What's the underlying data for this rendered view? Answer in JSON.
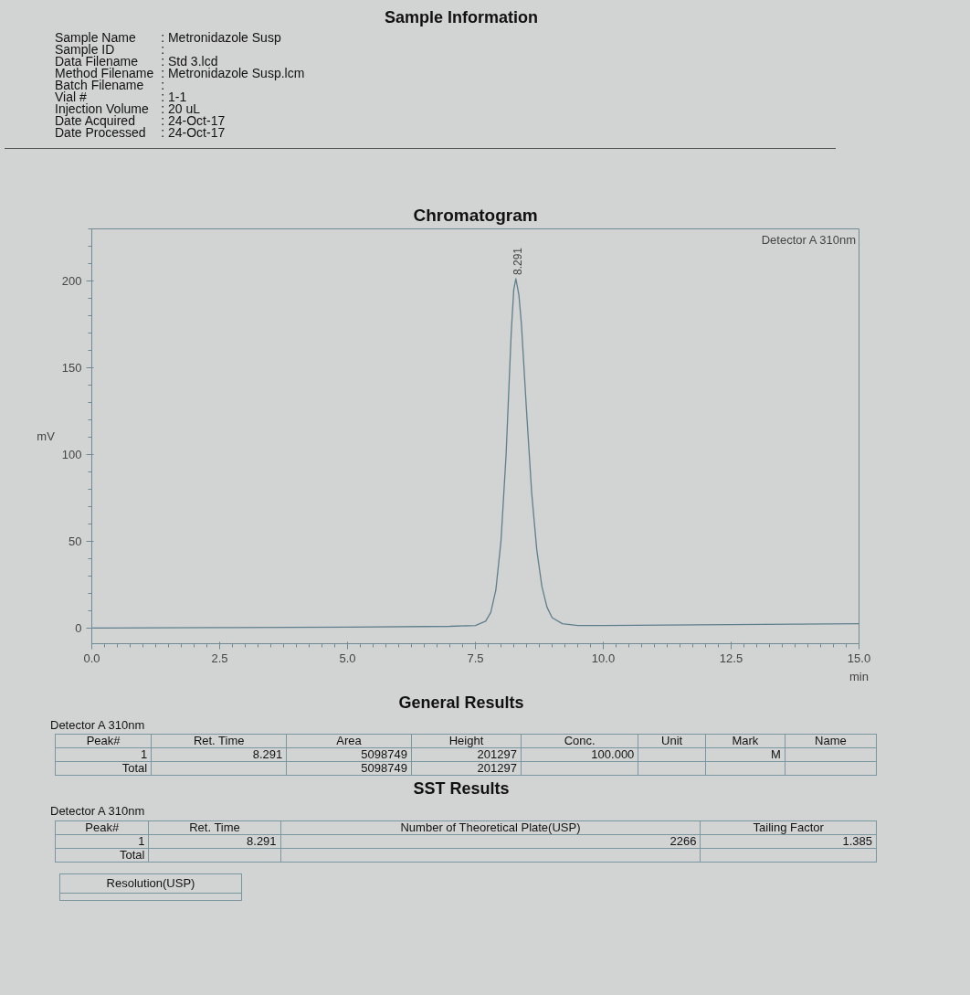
{
  "chart_data": {
    "type": "line",
    "title": "Chromatogram",
    "xlabel": "min",
    "ylabel": "mV",
    "x": [
      0,
      2.5,
      5,
      7.0,
      7.5,
      7.7,
      7.8,
      7.9,
      8.0,
      8.1,
      8.2,
      8.25,
      8.291,
      8.35,
      8.4,
      8.5,
      8.6,
      8.7,
      8.8,
      8.9,
      9.0,
      9.2,
      9.5,
      10,
      12.5,
      15
    ],
    "series": [
      {
        "color": "#5f7f8c",
        "values": [
          0,
          0.3,
          0.5,
          1,
          1.5,
          4,
          9,
          22,
          50,
          100,
          170,
          195,
          201.3,
          192,
          175,
          125,
          78,
          45,
          24,
          12,
          6,
          2.5,
          1.5,
          1.5,
          2,
          2.5
        ]
      }
    ],
    "xlim": [
      0,
      15
    ],
    "ylim": [
      -9,
      230
    ],
    "xticks": [
      {
        "value": 0,
        "label": "0.0"
      },
      {
        "value": 2.5,
        "label": "2.5"
      },
      {
        "value": 5,
        "label": "5.0"
      },
      {
        "value": 7.5,
        "label": "7.5"
      },
      {
        "value": 10,
        "label": "10.0"
      },
      {
        "value": 12.5,
        "label": "12.5"
      },
      {
        "value": 15,
        "label": "15.0"
      }
    ],
    "yticks": [
      0,
      50,
      100,
      150,
      200
    ],
    "grid": false,
    "annotations": [
      {
        "text": "8.291",
        "x": 8.291,
        "y": 201.3
      },
      "Detector A 310nm",
      "Sample Information",
      "Sample Name\t: Metronidazole Susp",
      "Sample ID\t:",
      "Data Filename\t: Std 3.lcd",
      "Method Filename\t: Metronidazole Susp.lcm",
      "Batch Filename\t:",
      "Vial #\t: 1-1",
      "Injection Volume\t: 20 uL",
      "Date Acquired\t: 24-Oct-17",
      "Date Processed\t: 24-Oct-17",
      "General Results",
      "Detector A 310nm",
      "Peak#\tRet. Time\tArea\tHeight\tConc.\tUnit\tMark\tName",
      "1\t8.291\t5098749\t201297\t100.000\t\tM\t",
      "Total\t\t5098749\t201297\t\t\t\t",
      "SST Results",
      "Detector A 310nm",
      "Peak#\tRet. Time\tNumber of Theoretical Plate(USP)\tTailing Factor",
      "1\t8.291\t2266\t1.385",
      "Total\t\t\t",
      "Resolution(USP)"
    ]
  }
}
